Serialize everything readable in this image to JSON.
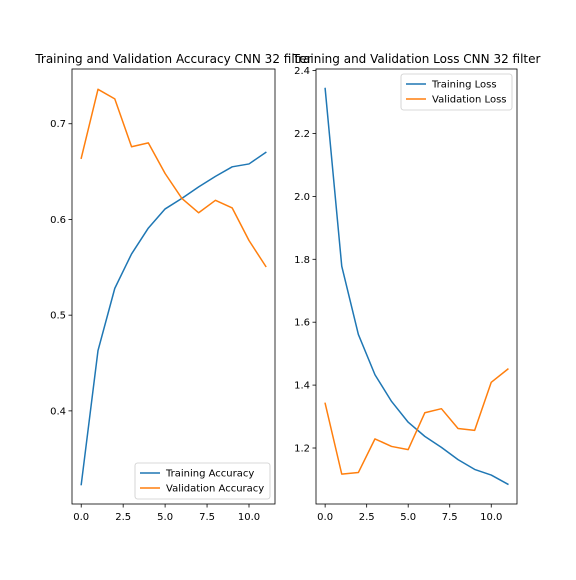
{
  "chart_data": [
    {
      "type": "line",
      "title": "Training and Validation Accuracy CNN 32 filter",
      "xlabel": "",
      "ylabel": "",
      "xlim": [
        -0.55,
        11.55
      ],
      "ylim": [
        0.3027,
        0.7572
      ],
      "xticks": [
        0.0,
        2.5,
        5.0,
        7.5,
        10.0
      ],
      "xtick_labels": [
        "0.0",
        "2.5",
        "5.0",
        "7.5",
        "10.0"
      ],
      "yticks": [
        0.4,
        0.5,
        0.6,
        0.7
      ],
      "ytick_labels": [
        "0.4",
        "0.5",
        "0.6",
        "0.7"
      ],
      "grid": false,
      "legend_position": "lower-right",
      "x": [
        0,
        1,
        2,
        3,
        4,
        5,
        6,
        7,
        8,
        9,
        10,
        11
      ],
      "series": [
        {
          "name": "Training Accuracy",
          "color": "#1f77b4",
          "values": [
            0.323,
            0.463,
            0.528,
            0.564,
            0.591,
            0.611,
            0.622,
            0.634,
            0.645,
            0.655,
            0.658,
            0.67
          ]
        },
        {
          "name": "Validation Accuracy",
          "color": "#ff7f0e",
          "values": [
            0.664,
            0.736,
            0.726,
            0.676,
            0.68,
            0.648,
            0.622,
            0.607,
            0.62,
            0.612,
            0.578,
            0.551
          ]
        }
      ]
    },
    {
      "type": "line",
      "title": "Training and Validation Loss CNN 32 filter",
      "xlabel": "",
      "ylabel": "",
      "xlim": [
        -0.55,
        11.55
      ],
      "ylim": [
        1.022,
        2.405
      ],
      "xticks": [
        0.0,
        2.5,
        5.0,
        7.5,
        10.0
      ],
      "xtick_labels": [
        "0.0",
        "2.5",
        "5.0",
        "7.5",
        "10.0"
      ],
      "yticks": [
        1.2,
        1.4,
        1.6,
        1.8,
        2.0,
        2.2,
        2.4
      ],
      "ytick_labels": [
        "1.2",
        "1.4",
        "1.6",
        "1.8",
        "2.0",
        "2.2",
        "2.4"
      ],
      "grid": false,
      "legend_position": "upper-right",
      "x": [
        0,
        1,
        2,
        3,
        4,
        5,
        6,
        7,
        8,
        9,
        10,
        11
      ],
      "series": [
        {
          "name": "Training Loss",
          "color": "#1f77b4",
          "values": [
            2.343,
            1.778,
            1.561,
            1.433,
            1.348,
            1.282,
            1.237,
            1.202,
            1.163,
            1.132,
            1.114,
            1.085
          ]
        },
        {
          "name": "Validation Loss",
          "color": "#ff7f0e",
          "values": [
            1.342,
            1.117,
            1.122,
            1.229,
            1.205,
            1.195,
            1.312,
            1.325,
            1.262,
            1.256,
            1.409,
            1.451
          ]
        }
      ]
    }
  ]
}
